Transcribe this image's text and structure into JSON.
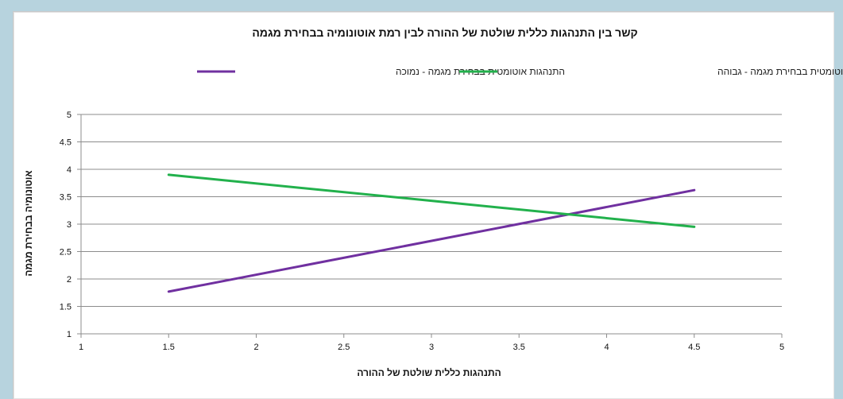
{
  "chart_data": {
    "type": "line",
    "title": "קשר בין התנהגות כללית שולטת של ההורה לבין רמת אוטונומיה בבחירת מגמה",
    "xlabel": "התנהגות כללית שולטת של ההורה",
    "ylabel": "אוטונומיה בבחירת מגמה",
    "xlim": [
      1,
      5
    ],
    "ylim": [
      1,
      5
    ],
    "x_ticks": [
      "1",
      "1.5",
      "2",
      "2.5",
      "3",
      "3.5",
      "4",
      "4.5",
      "5"
    ],
    "y_ticks": [
      "1",
      "1.5",
      "2",
      "2.5",
      "3",
      "3.5",
      "4",
      "4.5",
      "5"
    ],
    "grid": true,
    "legend_position": "top",
    "series": [
      {
        "name": "התנהגות אוטומטית בבחירת מגמה - נמוכה",
        "color": "#7030a0",
        "x": [
          1.5,
          4.5
        ],
        "y": [
          1.77,
          3.62
        ]
      },
      {
        "name": "התנהגות אוטומטית בבחירת מגמה - גבוהה",
        "color": "#22b14c",
        "x": [
          1.5,
          4.5
        ],
        "y": [
          3.9,
          2.95
        ]
      }
    ]
  }
}
